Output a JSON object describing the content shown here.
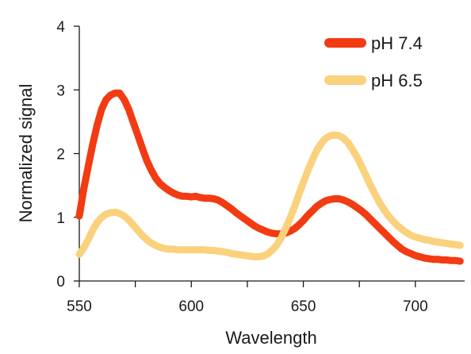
{
  "chart_data": {
    "type": "line",
    "xlabel": "Wavelength",
    "ylabel": "Normalized signal",
    "xlim": [
      550,
      722
    ],
    "ylim": [
      0,
      4
    ],
    "xticks": [
      550,
      600,
      650,
      700
    ],
    "xticks_minor": [
      575,
      625,
      675
    ],
    "yticks": [
      0,
      1,
      2,
      3,
      4
    ],
    "grid": false,
    "legend_position": "top-right",
    "series": [
      {
        "name": "pH 7.4",
        "color": "#f23b12",
        "x": [
          550,
          552,
          554,
          556,
          558,
          560,
          562,
          564,
          566,
          568,
          570,
          572,
          574,
          576,
          578,
          580,
          582,
          584,
          586,
          588,
          590,
          592,
          594,
          596,
          598,
          600,
          602,
          604,
          606,
          608,
          610,
          612,
          614,
          616,
          618,
          620,
          622,
          624,
          626,
          628,
          630,
          632,
          634,
          636,
          638,
          640,
          642,
          644,
          646,
          648,
          650,
          652,
          654,
          656,
          658,
          660,
          662,
          664,
          666,
          668,
          670,
          672,
          674,
          676,
          678,
          680,
          682,
          684,
          686,
          688,
          690,
          692,
          694,
          696,
          698,
          700,
          702,
          704,
          706,
          708,
          710,
          712,
          714,
          716,
          718,
          720
        ],
        "values": [
          1.02,
          1.45,
          1.8,
          2.15,
          2.45,
          2.7,
          2.85,
          2.92,
          2.95,
          2.95,
          2.85,
          2.7,
          2.5,
          2.3,
          2.1,
          1.9,
          1.75,
          1.62,
          1.53,
          1.47,
          1.42,
          1.38,
          1.35,
          1.33,
          1.33,
          1.32,
          1.33,
          1.31,
          1.3,
          1.3,
          1.29,
          1.27,
          1.23,
          1.18,
          1.13,
          1.07,
          1.02,
          0.97,
          0.92,
          0.87,
          0.83,
          0.8,
          0.77,
          0.75,
          0.74,
          0.74,
          0.75,
          0.78,
          0.82,
          0.88,
          0.95,
          1.03,
          1.1,
          1.17,
          1.22,
          1.26,
          1.28,
          1.29,
          1.29,
          1.27,
          1.24,
          1.2,
          1.15,
          1.1,
          1.04,
          0.97,
          0.9,
          0.83,
          0.76,
          0.69,
          0.62,
          0.56,
          0.5,
          0.46,
          0.43,
          0.4,
          0.38,
          0.36,
          0.35,
          0.34,
          0.34,
          0.33,
          0.33,
          0.32,
          0.32,
          0.31
        ]
      },
      {
        "name": "pH 6.5",
        "color": "#fad17c",
        "x": [
          550,
          552,
          554,
          556,
          558,
          560,
          562,
          564,
          566,
          568,
          570,
          572,
          574,
          576,
          578,
          580,
          582,
          584,
          586,
          588,
          590,
          592,
          594,
          596,
          598,
          600,
          602,
          604,
          606,
          608,
          610,
          612,
          614,
          616,
          618,
          620,
          622,
          624,
          626,
          628,
          630,
          632,
          634,
          636,
          638,
          640,
          642,
          644,
          646,
          648,
          650,
          652,
          654,
          656,
          658,
          660,
          662,
          664,
          666,
          668,
          670,
          672,
          674,
          676,
          678,
          680,
          682,
          684,
          686,
          688,
          690,
          692,
          694,
          696,
          698,
          700,
          702,
          704,
          706,
          708,
          710,
          712,
          714,
          716,
          718,
          720
        ],
        "values": [
          0.42,
          0.52,
          0.65,
          0.8,
          0.92,
          1.0,
          1.05,
          1.07,
          1.08,
          1.06,
          1.02,
          0.96,
          0.88,
          0.8,
          0.72,
          0.65,
          0.6,
          0.56,
          0.53,
          0.51,
          0.5,
          0.5,
          0.49,
          0.49,
          0.49,
          0.49,
          0.49,
          0.49,
          0.49,
          0.48,
          0.48,
          0.47,
          0.46,
          0.45,
          0.43,
          0.42,
          0.41,
          0.4,
          0.39,
          0.38,
          0.38,
          0.39,
          0.42,
          0.48,
          0.56,
          0.67,
          0.82,
          0.98,
          1.16,
          1.36,
          1.55,
          1.73,
          1.9,
          2.05,
          2.16,
          2.24,
          2.28,
          2.29,
          2.28,
          2.24,
          2.17,
          2.06,
          1.94,
          1.8,
          1.65,
          1.5,
          1.36,
          1.23,
          1.12,
          1.02,
          0.94,
          0.87,
          0.81,
          0.76,
          0.72,
          0.69,
          0.67,
          0.65,
          0.64,
          0.62,
          0.61,
          0.6,
          0.59,
          0.58,
          0.57,
          0.56
        ]
      }
    ]
  }
}
